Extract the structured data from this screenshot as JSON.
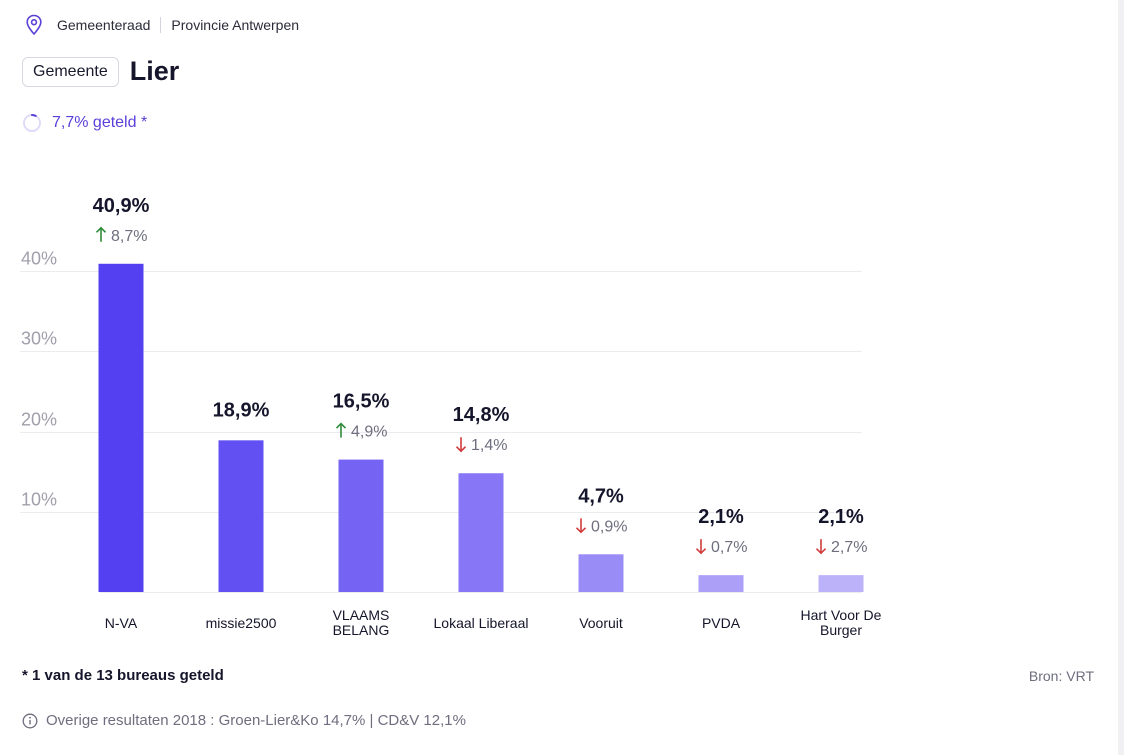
{
  "breadcrumb": {
    "level1": "Gemeenteraad",
    "level2": "Provincie Antwerpen"
  },
  "header": {
    "badge": "Gemeente",
    "title": "Lier"
  },
  "progress": {
    "label": "7,7% geteld *",
    "fraction": 0.077
  },
  "chart_data": {
    "type": "bar",
    "title": "",
    "xlabel": "",
    "ylabel": "",
    "ylim": [
      0,
      40
    ],
    "yticks": [
      10,
      20,
      30,
      40
    ],
    "ytick_labels": [
      "10%",
      "20%",
      "30%",
      "40%"
    ],
    "grid": true,
    "categories": [
      "N-VA",
      "missie2500",
      "VLAAMS BELANG",
      "Lokaal Liberaal",
      "Vooruit",
      "PVDA",
      "Hart Voor De Burger"
    ],
    "category_lines": [
      [
        "N-VA"
      ],
      [
        "missie2500"
      ],
      [
        "VLAAMS",
        "BELANG"
      ],
      [
        "Lokaal Liberaal"
      ],
      [
        "Vooruit"
      ],
      [
        "PVDA"
      ],
      [
        "Hart Voor De",
        "Burger"
      ]
    ],
    "values": [
      40.9,
      18.9,
      16.5,
      14.8,
      4.7,
      2.1,
      2.1
    ],
    "value_labels": [
      "40,9%",
      "18,9%",
      "16,5%",
      "14,8%",
      "4,7%",
      "2,1%",
      "2,1%"
    ],
    "changes": [
      {
        "direction": "up",
        "label": "8,7%"
      },
      null,
      {
        "direction": "up",
        "label": "4,9%"
      },
      {
        "direction": "down",
        "label": "1,4%"
      },
      {
        "direction": "down",
        "label": "0,9%"
      },
      {
        "direction": "down",
        "label": "0,7%"
      },
      {
        "direction": "down",
        "label": "2,7%"
      }
    ],
    "colors": [
      "#5440f0",
      "#6350f3",
      "#7563f4",
      "#8776f5",
      "#9a8cf6",
      "#ab9ff8",
      "#bbb2fa"
    ]
  },
  "footer": {
    "footnote": "* 1 van de 13 bureaus geteld",
    "source": "Bron: VRT",
    "other_results": "Overige resultaten 2018 : Groen-Lier&Ko 14,7% | CD&V 12,1%"
  },
  "icons": {
    "breadcrumb": "location-pin-icon",
    "progress": "loading-ring-icon",
    "info": "info-circle-icon"
  },
  "colors": {
    "up": "#2e8b3a",
    "down": "#d03a3a",
    "accent": "#5b3fd9"
  }
}
